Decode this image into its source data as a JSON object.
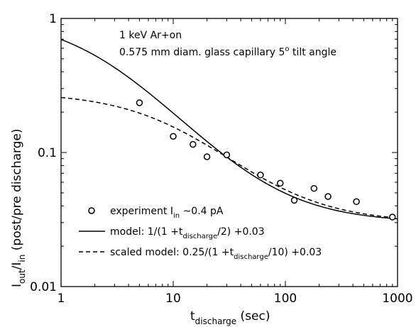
{
  "chart_data": {
    "type": "line",
    "xscale": "log",
    "yscale": "log",
    "xlim": [
      1,
      1000
    ],
    "ylim": [
      0.01,
      1
    ],
    "xticks": [
      {
        "value": 1,
        "label": "1"
      },
      {
        "value": 10,
        "label": "10"
      },
      {
        "value": 100,
        "label": "100"
      },
      {
        "value": 1000,
        "label": "1000"
      }
    ],
    "yticks": [
      {
        "value": 0.01,
        "label": "0.01"
      },
      {
        "value": 0.1,
        "label": "0.1"
      },
      {
        "value": 1,
        "label": "1"
      }
    ],
    "xlabel": {
      "base": "t",
      "sub": "discharge",
      "tail": " (sec)"
    },
    "ylabel": {
      "p1": "I",
      "s1": "out",
      "p2": "/I",
      "s2": "in",
      "p3": " (post/pre discharge)"
    },
    "annotations": {
      "line1": "1 keV Ar+on",
      "line2": "0.575 mm diam. glass capillary   5",
      "line2_sup": "o",
      "line2_tail": " tilt angle"
    },
    "legend": [
      {
        "style": "circle",
        "text": "experiment   I",
        "sub": "in",
        "tail": " ~0.4 pA"
      },
      {
        "style": "solid",
        "text": "model: 1/(1 +t",
        "sub": "discharge",
        "tail": "/2) +0.03"
      },
      {
        "style": "dashed",
        "text": "scaled model: 0.25/(1 +t",
        "sub": "discharge",
        "tail": "/10) +0.03"
      }
    ],
    "series": [
      {
        "style": "circle",
        "x": [
          5,
          10,
          15,
          20,
          30,
          60,
          90,
          120,
          180,
          240,
          430,
          900
        ],
        "y": [
          0.235,
          0.132,
          0.115,
          0.093,
          0.096,
          0.068,
          0.059,
          0.044,
          0.054,
          0.047,
          0.043,
          0.033
        ]
      },
      {
        "style": "solid",
        "formula": "1/(1+t/2)+0.03"
      },
      {
        "style": "dashed",
        "formula": "0.25/(1+t/10)+0.03"
      }
    ],
    "grid": false
  }
}
